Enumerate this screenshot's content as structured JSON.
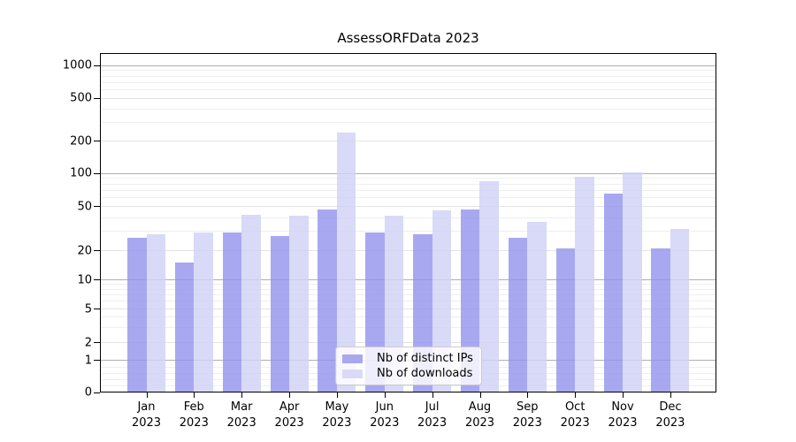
{
  "title": "AssessORFData 2023",
  "chart_data": {
    "type": "bar",
    "title": "AssessORFData 2023",
    "categories": [
      "Jan 2023",
      "Feb 2023",
      "Mar 2023",
      "Apr 2023",
      "May 2023",
      "Jun 2023",
      "Jul 2023",
      "Aug 2023",
      "Sep 2023",
      "Oct 2023",
      "Nov 2023",
      "Dec 2023"
    ],
    "series": [
      {
        "name": "Nb of distinct IPs",
        "display_color": "#a8a8ee",
        "fill": "rgba(146,146,238,0.8)",
        "values": [
          26,
          15,
          29,
          27,
          47,
          29,
          28,
          47,
          26,
          21,
          65,
          21
        ]
      },
      {
        "name": "Nb of downloads",
        "display_color": "#dadaf8",
        "fill": "rgba(209,209,246,0.82)",
        "values": [
          28,
          29,
          42,
          41,
          240,
          41,
          46,
          85,
          36,
          92,
          102,
          31
        ]
      }
    ],
    "ytick_labels": [
      "0",
      "1",
      "2",
      "5",
      "10",
      "20",
      "50",
      "100",
      "200",
      "500",
      "1000"
    ],
    "ytick_values": [
      0,
      1,
      2,
      5,
      10,
      20,
      50,
      100,
      200,
      500,
      1000
    ],
    "ylim": [
      0,
      1300
    ],
    "scale": "symlog",
    "grid": true,
    "legend_position": "lower center",
    "grid_colors": {
      "major": "#b0b0b0",
      "labeled": "#e4e4e4",
      "minor": "#efefef"
    }
  }
}
